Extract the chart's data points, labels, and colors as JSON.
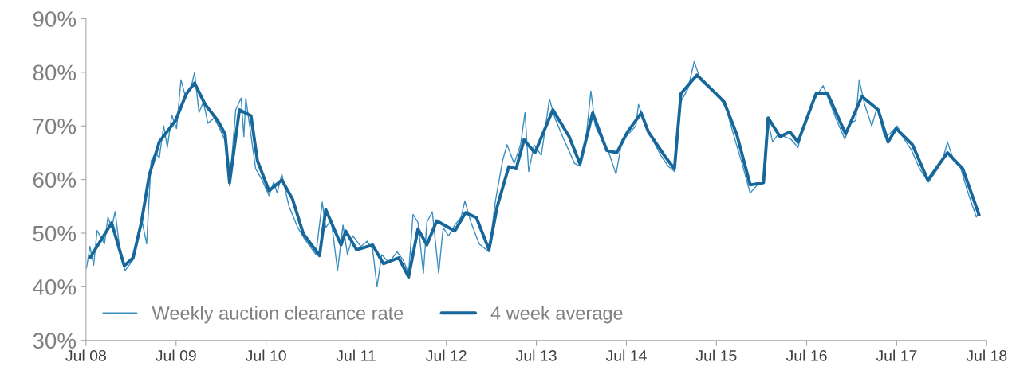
{
  "chart_data": {
    "type": "line",
    "xlim": [
      "2008-07-01",
      "2018-07-01"
    ],
    "ylim": [
      30,
      90
    ],
    "xticks": [
      {
        "value": "2008-07-01",
        "label": "Jul 08"
      },
      {
        "value": "2009-07-01",
        "label": "Jul 09"
      },
      {
        "value": "2010-07-01",
        "label": "Jul 10"
      },
      {
        "value": "2011-07-01",
        "label": "Jul 11"
      },
      {
        "value": "2012-07-01",
        "label": "Jul 12"
      },
      {
        "value": "2013-07-01",
        "label": "Jul 13"
      },
      {
        "value": "2014-07-01",
        "label": "Jul 14"
      },
      {
        "value": "2015-07-01",
        "label": "Jul 15"
      },
      {
        "value": "2016-07-01",
        "label": "Jul 16"
      },
      {
        "value": "2017-07-01",
        "label": "Jul 17"
      },
      {
        "value": "2018-07-01",
        "label": "Jul 18"
      }
    ],
    "yticks": [
      {
        "value": 30,
        "label": "30%"
      },
      {
        "value": 40,
        "label": "40%"
      },
      {
        "value": 50,
        "label": "50%"
      },
      {
        "value": 60,
        "label": "60%"
      },
      {
        "value": 70,
        "label": "70%"
      },
      {
        "value": 80,
        "label": "80%"
      },
      {
        "value": 90,
        "label": "90%"
      }
    ],
    "grid": false,
    "legend": "bottom left",
    "marker": "none",
    "line_style": "solid",
    "series": [
      {
        "name": "Weekly auction clearance rate",
        "color": "#3a8fc0",
        "x": [
          "2008-07-03",
          "2008-07-17",
          "2008-08-01",
          "2008-08-15",
          "2008-09-14",
          "2008-09-28",
          "2008-10-13",
          "2008-10-27",
          "2008-11-18",
          "2008-12-06",
          "2009-01-08",
          "2009-01-30",
          "2009-02-14",
          "2009-03-04",
          "2009-03-22",
          "2009-04-10",
          "2009-04-24",
          "2009-05-12",
          "2009-05-27",
          "2009-06-14",
          "2009-07-03",
          "2009-07-21",
          "2009-08-08",
          "2009-08-30",
          "2009-09-14",
          "2009-10-02",
          "2009-10-20",
          "2009-11-07",
          "2009-12-03",
          "2009-12-25",
          "2010-01-23",
          "2010-02-03",
          "2010-02-28",
          "2010-03-22",
          "2010-04-02",
          "2010-04-10",
          "2010-04-24",
          "2010-05-20",
          "2010-06-14",
          "2010-07-13",
          "2010-08-01",
          "2010-08-15",
          "2010-09-03",
          "2010-10-02",
          "2010-11-07",
          "2010-12-03",
          "2011-01-19",
          "2011-02-14",
          "2011-02-28",
          "2011-03-22",
          "2011-04-17",
          "2011-05-09",
          "2011-05-27",
          "2011-06-18",
          "2011-07-21",
          "2011-08-15",
          "2011-09-06",
          "2011-09-24",
          "2011-10-13",
          "2011-11-11",
          "2011-12-14",
          "2012-01-08",
          "2012-01-30",
          "2012-02-17",
          "2012-03-08",
          "2012-03-30",
          "2012-04-13",
          "2012-05-05",
          "2012-05-31",
          "2012-06-18",
          "2012-07-10",
          "2012-08-04",
          "2012-08-30",
          "2012-09-14",
          "2012-10-09",
          "2012-11-11",
          "2012-12-21",
          "2013-01-16",
          "2013-02-14",
          "2013-03-04",
          "2013-04-02",
          "2013-04-28",
          "2013-05-16",
          "2013-05-31",
          "2013-06-22",
          "2013-07-21",
          "2013-08-23",
          "2013-09-14",
          "2013-10-20",
          "2013-12-03",
          "2013-12-25",
          "2014-01-19",
          "2014-02-07",
          "2014-02-25",
          "2014-03-22",
          "2014-04-21",
          "2014-05-20",
          "2014-06-14",
          "2014-07-10",
          "2014-08-08",
          "2014-08-19",
          "2014-09-14",
          "2014-10-20",
          "2014-11-18",
          "2014-12-17",
          "2015-01-12",
          "2015-02-07",
          "2015-03-08",
          "2015-04-02",
          "2015-04-28",
          "2015-06-03",
          "2015-07-10",
          "2015-08-08",
          "2015-09-14",
          "2015-10-13",
          "2015-11-15",
          "2015-12-14",
          "2016-01-08",
          "2016-01-23",
          "2016-02-14",
          "2016-03-08",
          "2016-04-02",
          "2016-04-28",
          "2016-05-27",
          "2016-06-22",
          "2016-07-21",
          "2016-08-15",
          "2016-09-06",
          "2016-10-02",
          "2016-10-31",
          "2016-12-03",
          "2016-12-25",
          "2017-01-16",
          "2017-01-30",
          "2017-02-21",
          "2017-03-22",
          "2017-04-13",
          "2017-05-12",
          "2017-06-03",
          "2017-07-03",
          "2017-08-01",
          "2017-08-30",
          "2017-10-02",
          "2017-11-07",
          "2017-12-14",
          "2018-01-08",
          "2018-01-23",
          "2018-02-14",
          "2018-03-15",
          "2018-04-13",
          "2018-05-05",
          "2018-05-20",
          "2018-05-31"
        ],
        "values": [
          43.5,
          47.5,
          44.0,
          50.5,
          48.0,
          53.0,
          51.0,
          54.0,
          46.0,
          43.0,
          45.0,
          49.5,
          52.0,
          48.0,
          63.5,
          65.0,
          64.0,
          70.0,
          66.0,
          72.0,
          69.5,
          78.6,
          75.5,
          77.0,
          80.0,
          72.5,
          74.5,
          70.5,
          71.5,
          69.5,
          66.5,
          58.8,
          73.0,
          75.2,
          68.0,
          75.2,
          70.5,
          62.0,
          60.0,
          57.0,
          59.5,
          57.5,
          61.0,
          55.0,
          51.0,
          49.0,
          46.0,
          55.8,
          51.0,
          52.5,
          43.0,
          51.5,
          46.0,
          49.5,
          47.5,
          48.5,
          47.0,
          40.0,
          46.0,
          44.5,
          46.5,
          45.0,
          42.5,
          53.5,
          52.0,
          42.5,
          52.0,
          54.0,
          42.5,
          51.0,
          49.5,
          51.5,
          53.0,
          56.0,
          52.0,
          48.0,
          46.5,
          56.0,
          63.5,
          66.5,
          63.0,
          66.5,
          72.5,
          61.5,
          66.5,
          64.5,
          75.0,
          71.5,
          67.5,
          63.0,
          62.5,
          68.0,
          76.5,
          70.0,
          67.5,
          65.0,
          61.0,
          67.5,
          68.5,
          70.0,
          74.0,
          70.5,
          67.0,
          64.5,
          62.5,
          61.5,
          74.5,
          77.0,
          82.0,
          78.5,
          77.0,
          75.5,
          73.5,
          67.5,
          63.0,
          57.5,
          59.0,
          59.5,
          71.5,
          67.0,
          68.5,
          68.0,
          67.5,
          66.0,
          70.5,
          74.0,
          76.0,
          77.5,
          74.5,
          71.0,
          67.5,
          70.5,
          71.0,
          78.6,
          74.0,
          70.0,
          73.5,
          68.0,
          68.5,
          70.0,
          67.5,
          65.5,
          62.0,
          59.5,
          62.0,
          64.5,
          67.0,
          64.0,
          62.5,
          58.0,
          55.0,
          53.0,
          54.0
        ]
      },
      {
        "name": "4 week average",
        "color": "#17679a",
        "x": [
          "2008-07-17",
          "2008-10-13",
          "2008-12-03",
          "2009-01-08",
          "2009-02-10",
          "2009-03-15",
          "2009-04-24",
          "2009-06-29",
          "2009-08-12",
          "2009-09-14",
          "2009-10-27",
          "2009-12-17",
          "2010-01-16",
          "2010-02-03",
          "2010-03-15",
          "2010-05-01",
          "2010-05-27",
          "2010-07-13",
          "2010-09-03",
          "2010-10-16",
          "2010-11-29",
          "2011-02-03",
          "2011-02-28",
          "2011-05-01",
          "2011-05-20",
          "2011-07-03",
          "2011-09-06",
          "2011-10-20",
          "2011-12-21",
          "2012-01-30",
          "2012-03-08",
          "2012-04-13",
          "2012-05-23",
          "2012-08-04",
          "2012-09-17",
          "2012-10-31",
          "2012-12-21",
          "2013-01-23",
          "2013-03-11",
          "2013-04-10",
          "2013-05-12",
          "2013-06-25",
          "2013-09-06",
          "2013-11-11",
          "2013-12-25",
          "2014-02-14",
          "2014-04-13",
          "2014-05-23",
          "2014-07-06",
          "2014-08-30",
          "2014-09-28",
          "2014-12-03",
          "2015-01-12",
          "2015-02-07",
          "2015-04-13",
          "2015-08-01",
          "2015-09-21",
          "2015-11-15",
          "2016-01-08",
          "2016-01-27",
          "2016-03-15",
          "2016-04-24",
          "2016-05-27",
          "2016-08-08",
          "2016-09-24",
          "2016-12-06",
          "2017-02-10",
          "2017-04-17",
          "2017-05-27",
          "2017-06-29",
          "2017-09-03",
          "2017-11-04",
          "2018-01-23",
          "2018-03-26",
          "2018-05-31"
        ],
        "values": [
          45.4,
          51.9,
          43.9,
          45.4,
          51.9,
          60.9,
          67.0,
          71.0,
          76.0,
          78.0,
          74.0,
          71.0,
          68.5,
          59.4,
          73.0,
          71.9,
          63.5,
          57.9,
          59.9,
          56.4,
          49.9,
          45.8,
          54.4,
          47.8,
          50.4,
          46.9,
          47.8,
          44.3,
          45.4,
          41.8,
          50.8,
          47.8,
          52.3,
          50.4,
          53.8,
          52.9,
          46.9,
          54.9,
          62.4,
          62.0,
          67.4,
          65.0,
          73.0,
          68.0,
          62.9,
          72.4,
          65.4,
          65.0,
          68.9,
          72.4,
          68.9,
          64.4,
          62.0,
          76.0,
          79.5,
          74.5,
          68.5,
          59.0,
          59.4,
          71.5,
          68.0,
          68.9,
          67.0,
          76.0,
          76.0,
          68.5,
          75.5,
          73.0,
          67.0,
          69.5,
          66.5,
          59.9,
          65.0,
          62.0,
          53.4
        ]
      }
    ]
  }
}
